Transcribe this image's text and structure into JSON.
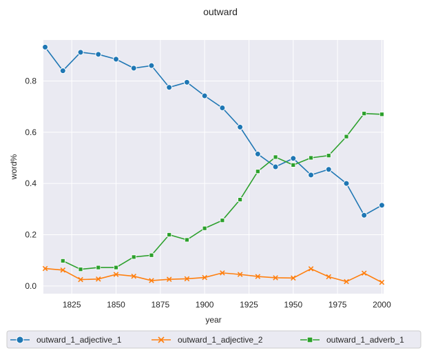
{
  "chart_data": {
    "type": "line",
    "title": "outward",
    "xlabel": "year",
    "ylabel": "word%",
    "xlim": [
      1809,
      2001
    ],
    "ylim": [
      -0.03,
      0.96
    ],
    "x_ticks": [
      1825,
      1850,
      1875,
      1900,
      1925,
      1950,
      1975,
      2000
    ],
    "y_ticks": [
      0.0,
      0.2,
      0.4,
      0.6,
      0.8
    ],
    "x_tick_labels": [
      "1825",
      "1850",
      "1875",
      "1900",
      "1925",
      "1950",
      "1975",
      "2000"
    ],
    "y_tick_labels": [
      "0.0",
      "0.2",
      "0.4",
      "0.6",
      "0.8"
    ],
    "grid": true,
    "legend_position": "bottom-center",
    "series": [
      {
        "name": "outward_1_adjective_1",
        "color": "#1f77b4",
        "marker": "circle",
        "x": [
          1810,
          1820,
          1830,
          1840,
          1850,
          1860,
          1870,
          1880,
          1890,
          1900,
          1910,
          1920,
          1930,
          1940,
          1950,
          1960,
          1970,
          1980,
          1990,
          2000
        ],
        "y": [
          0.932,
          0.84,
          0.912,
          0.904,
          0.885,
          0.85,
          0.86,
          0.775,
          0.795,
          0.742,
          0.695,
          0.62,
          0.515,
          0.465,
          0.498,
          0.433,
          0.455,
          0.4,
          0.276,
          0.315
        ]
      },
      {
        "name": "outward_1_adjective_2",
        "color": "#ff7f0e",
        "marker": "x",
        "x": [
          1810,
          1820,
          1830,
          1840,
          1850,
          1860,
          1870,
          1880,
          1890,
          1900,
          1910,
          1920,
          1930,
          1940,
          1950,
          1960,
          1970,
          1980,
          1990,
          2000
        ],
        "y": [
          0.068,
          0.062,
          0.025,
          0.027,
          0.045,
          0.038,
          0.021,
          0.026,
          0.028,
          0.033,
          0.051,
          0.045,
          0.037,
          0.032,
          0.031,
          0.067,
          0.036,
          0.017,
          0.05,
          0.014
        ]
      },
      {
        "name": "outward_1_adverb_1",
        "color": "#2ca02c",
        "marker": "square",
        "x": [
          1820,
          1830,
          1840,
          1850,
          1860,
          1870,
          1880,
          1890,
          1900,
          1910,
          1920,
          1930,
          1940,
          1950,
          1960,
          1970,
          1980,
          1990,
          2000
        ],
        "y": [
          0.098,
          0.065,
          0.072,
          0.072,
          0.113,
          0.12,
          0.2,
          0.18,
          0.225,
          0.256,
          0.337,
          0.447,
          0.503,
          0.472,
          0.5,
          0.509,
          0.583,
          0.673,
          0.67
        ]
      }
    ]
  }
}
